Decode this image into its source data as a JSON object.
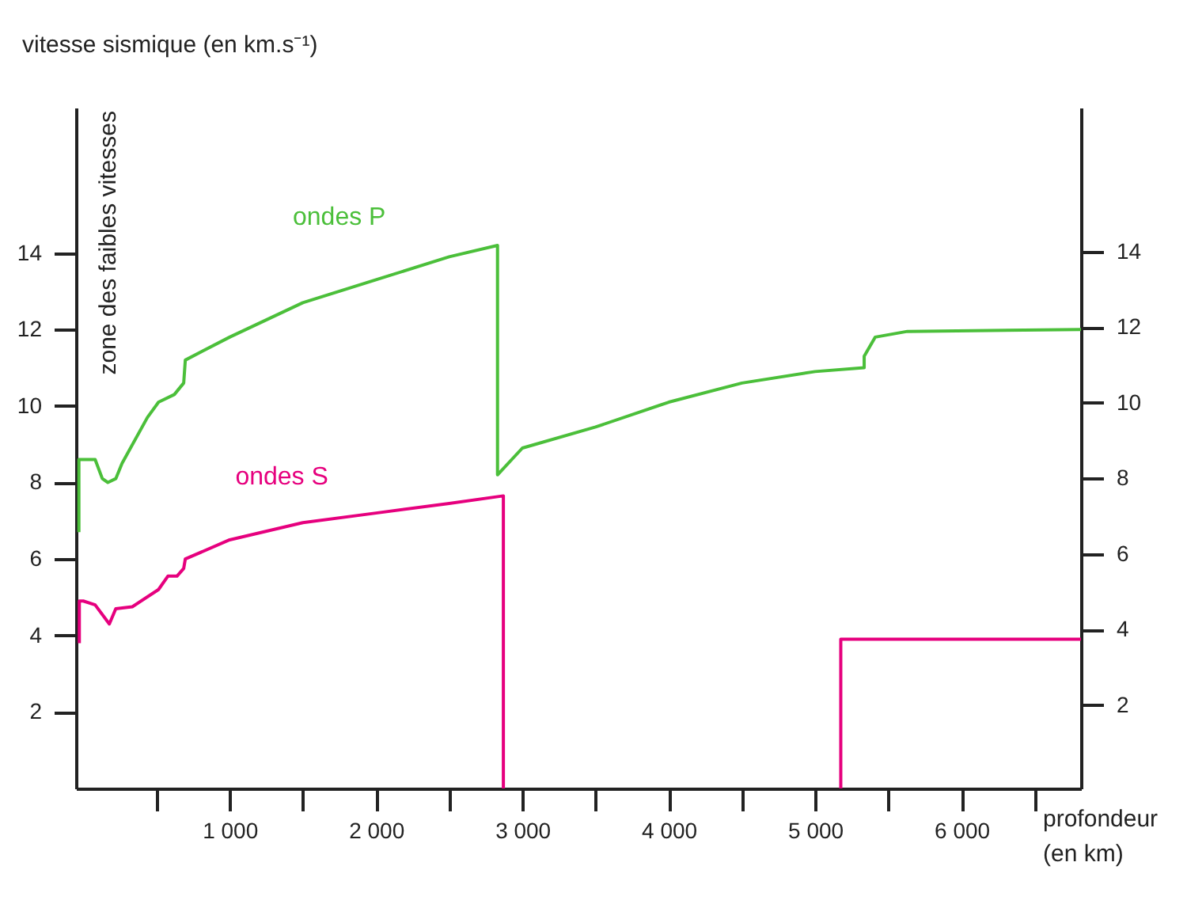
{
  "chart_data": {
    "type": "line",
    "ylabel": "vitesse sismique (en km.s⁻¹)",
    "xlabel": "profondeur\n(en km)",
    "annotations": [
      "zone des faibles vitesses"
    ],
    "xlim": [
      -50,
      6816
    ],
    "ylim": [
      0,
      17.8
    ],
    "y2lim": [
      -0.2,
      17.8
    ],
    "xticks": [
      {
        "value": 500,
        "label": null
      },
      {
        "value": 1000,
        "label": "1 000"
      },
      {
        "value": 1500,
        "label": null
      },
      {
        "value": 2000,
        "label": "2 000"
      },
      {
        "value": 2500,
        "label": null
      },
      {
        "value": 3000,
        "label": "3 000"
      },
      {
        "value": 3500,
        "label": null
      },
      {
        "value": 4000,
        "label": "4 000"
      },
      {
        "value": 4500,
        "label": null
      },
      {
        "value": 5000,
        "label": "5 000"
      },
      {
        "value": 5500,
        "label": null
      },
      {
        "value": 6000,
        "label": "6 000"
      },
      {
        "value": 6500,
        "label": null
      }
    ],
    "yticks": [
      2,
      4,
      6,
      8,
      10,
      12,
      14
    ],
    "y2ticks": [
      2,
      4,
      6,
      8,
      10,
      12,
      14
    ],
    "grid": false,
    "marker": "none",
    "line_style": "solid",
    "series": [
      {
        "name": "ondes P",
        "color": "#4bbf3a",
        "x": [
          -30,
          -30,
          81,
          130,
          168,
          222,
          265,
          438,
          514,
          622,
          686,
          697,
          1000,
          1500,
          2000,
          2500,
          2830,
          2830,
          3000,
          3500,
          4000,
          4500,
          5000,
          5335,
          5335,
          5410,
          5630,
          6816
        ],
        "values": [
          6.7,
          8.6,
          8.6,
          8.1,
          8.0,
          8.1,
          8.5,
          9.7,
          10.1,
          10.3,
          10.6,
          11.2,
          11.8,
          12.7,
          13.3,
          13.9,
          14.2,
          8.2,
          8.9,
          9.45,
          10.1,
          10.6,
          10.9,
          11.0,
          11.3,
          11.8,
          11.95,
          12.0
        ]
      },
      {
        "name": "ondes S",
        "color": "#e6007e",
        "x": [
          -27,
          -27,
          0,
          81,
          178,
          222,
          335,
          514,
          578,
          640,
          686,
          697,
          1000,
          1500,
          2000,
          2500,
          2870,
          2870,
          4000,
          5175,
          5175,
          6816
        ],
        "values": [
          3.8,
          4.9,
          4.9,
          4.8,
          4.3,
          4.7,
          4.75,
          5.2,
          5.55,
          5.55,
          5.75,
          6.0,
          6.5,
          6.95,
          7.2,
          7.45,
          7.65,
          0,
          null,
          0,
          3.9,
          3.9
        ]
      }
    ]
  }
}
